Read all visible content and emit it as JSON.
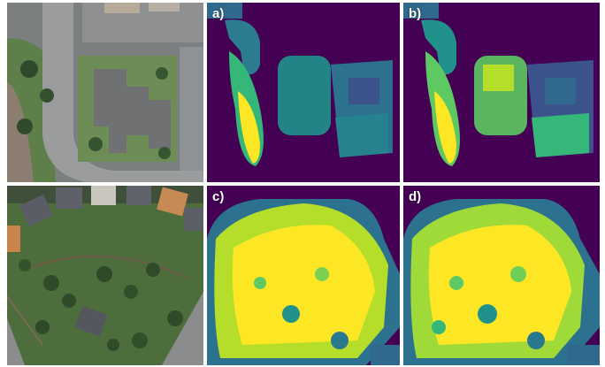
{
  "panels": {
    "a": {
      "label": "a)"
    },
    "b": {
      "label": "b)"
    },
    "c": {
      "label": "c)"
    },
    "d": {
      "label": "d)"
    }
  },
  "colormap": {
    "low": "#440154",
    "mid": "#21918c",
    "high": "#fde725"
  }
}
